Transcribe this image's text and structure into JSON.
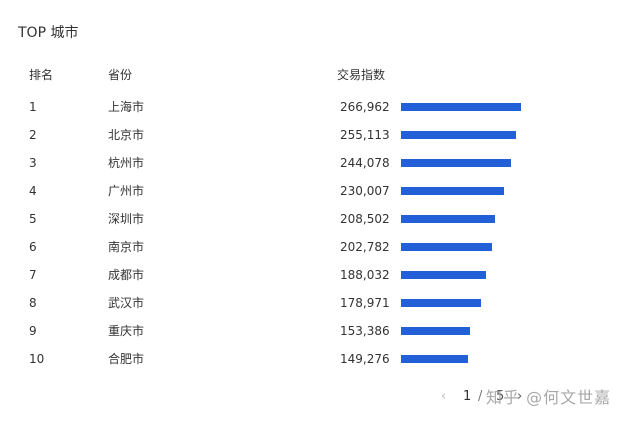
{
  "title": "TOP 城市",
  "headers": {
    "rank": "排名",
    "province": "省份",
    "index": "交易指数"
  },
  "bar_color": "#2360d8",
  "rows": [
    {
      "rank": "1",
      "city": "上海市",
      "value": "266,962",
      "num": 266962
    },
    {
      "rank": "2",
      "city": "北京市",
      "value": "255,113",
      "num": 255113
    },
    {
      "rank": "3",
      "city": "杭州市",
      "value": "244,078",
      "num": 244078
    },
    {
      "rank": "4",
      "city": "广州市",
      "value": "230,007",
      "num": 230007
    },
    {
      "rank": "5",
      "city": "深圳市",
      "value": "208,502",
      "num": 208502
    },
    {
      "rank": "6",
      "city": "南京市",
      "value": "202,782",
      "num": 202782
    },
    {
      "rank": "7",
      "city": "成都市",
      "value": "188,032",
      "num": 188032
    },
    {
      "rank": "8",
      "city": "武汉市",
      "value": "178,971",
      "num": 178971
    },
    {
      "rank": "9",
      "city": "重庆市",
      "value": "153,386",
      "num": 153386
    },
    {
      "rank": "10",
      "city": "合肥市",
      "value": "149,276",
      "num": 149276
    }
  ],
  "pagination": {
    "prev": "‹",
    "current": "1",
    "separator": "/",
    "total": "5",
    "next": "›"
  },
  "watermark": "知乎 @何文世嘉"
}
